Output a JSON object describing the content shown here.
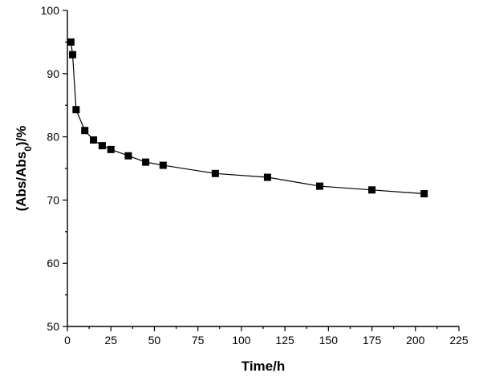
{
  "chart_data": {
    "type": "line",
    "title": "",
    "xlabel": "Time/h",
    "ylabel": {
      "prefix": "(Abs/Abs",
      "subscript": "0",
      "suffix": ")/%"
    },
    "xlim": [
      0,
      225
    ],
    "ylim": [
      50,
      100
    ],
    "x_ticks": [
      0,
      25,
      50,
      75,
      100,
      125,
      150,
      175,
      200,
      225
    ],
    "y_ticks": [
      50,
      60,
      70,
      80,
      90,
      100
    ],
    "grid": false,
    "legend": "none",
    "series": [
      {
        "marker": "square",
        "color": "#000000",
        "x": [
          2,
          3,
          5,
          10,
          15,
          20,
          25,
          35,
          45,
          55,
          85,
          115,
          145,
          175,
          205
        ],
        "y": [
          95.0,
          93.0,
          84.3,
          81.0,
          79.5,
          78.6,
          78.0,
          77.0,
          76.0,
          75.5,
          74.2,
          73.6,
          72.2,
          71.6,
          71.0
        ]
      }
    ]
  }
}
